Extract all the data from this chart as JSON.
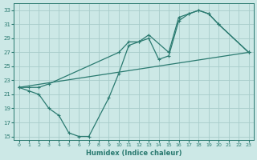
{
  "xlabel": "Humidex (Indice chaleur)",
  "bg_color": "#cce8e6",
  "grid_color": "#a8ccca",
  "line_color": "#2a7a70",
  "xlim": [
    -0.5,
    23.5
  ],
  "ylim": [
    14.5,
    34.0
  ],
  "xticks": [
    0,
    1,
    2,
    3,
    4,
    5,
    6,
    7,
    8,
    9,
    10,
    11,
    12,
    13,
    14,
    15,
    16,
    17,
    18,
    19,
    20,
    21,
    22,
    23
  ],
  "yticks": [
    15,
    17,
    19,
    21,
    23,
    25,
    27,
    29,
    31,
    33
  ],
  "line1_x": [
    0,
    1,
    2,
    3,
    4,
    5,
    6,
    7,
    9,
    10,
    11,
    12,
    13,
    14,
    15,
    16,
    17,
    18,
    19,
    20,
    23
  ],
  "line1_y": [
    22,
    21.5,
    21,
    19,
    18,
    15.5,
    15,
    15,
    20.5,
    24,
    28,
    28.5,
    29,
    26,
    26.5,
    31.5,
    32.5,
    33,
    32.5,
    31,
    27
  ],
  "line2_x": [
    0,
    1,
    2,
    3,
    10,
    11,
    12,
    13,
    15,
    16,
    17,
    18,
    19,
    20,
    23
  ],
  "line2_y": [
    22,
    22,
    22,
    22.5,
    27,
    28.5,
    28.5,
    29.5,
    27,
    32,
    32.5,
    33,
    32.5,
    31,
    27
  ],
  "line3_x": [
    0,
    23
  ],
  "line3_y": [
    22,
    27
  ]
}
